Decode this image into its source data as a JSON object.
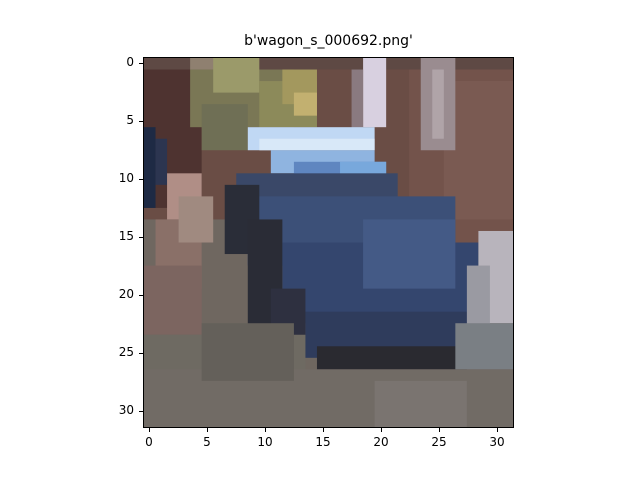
{
  "title": "b'wagon_s_000692.png'",
  "x_ticks": [
    "0",
    "5",
    "10",
    "15",
    "20",
    "25",
    "30"
  ],
  "y_ticks": [
    "0",
    "5",
    "10",
    "15",
    "20",
    "25",
    "30"
  ],
  "image": {
    "description_colors": {
      "background_wall": "#6b4e46",
      "car_body": "#3a4f78",
      "car_highlight": "#8fb0e0",
      "ground": "#77716a",
      "foliage": "#8c8a5a"
    }
  }
}
